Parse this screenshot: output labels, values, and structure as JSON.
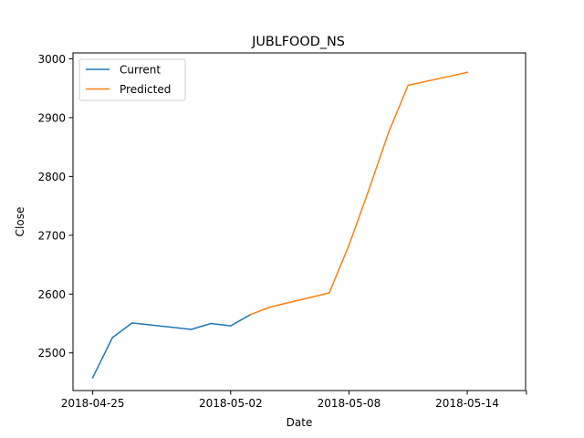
{
  "chart_data": {
    "type": "line",
    "title": "JUBLFOOD_NS",
    "xlabel": "Date",
    "ylabel": "Close",
    "x_axis_type": "date",
    "xlim": [
      "2018-04-24",
      "2018-05-16"
    ],
    "ylim": [
      2436,
      3010
    ],
    "x_ticks": [
      "2018-04-25",
      "2018-05-02",
      "2018-05-08",
      "2018-05-14",
      "2018-05-17"
    ],
    "x_tick_labels": [
      "2018-04-25",
      "2018-05-02",
      "2018-05-08",
      "2018-05-14",
      ""
    ],
    "y_ticks": [
      2500,
      2600,
      2700,
      2800,
      2900,
      3000
    ],
    "y_tick_labels": [
      "2500",
      "2600",
      "2700",
      "2800",
      "2900",
      "3000"
    ],
    "grid": false,
    "legend_position": "top-left",
    "series": [
      {
        "name": "Current",
        "color": "#1f77b4",
        "points": [
          {
            "x": "2018-04-25",
            "y": 2458
          },
          {
            "x": "2018-04-26",
            "y": 2526
          },
          {
            "x": "2018-04-27",
            "y": 2551
          },
          {
            "x": "2018-04-30",
            "y": 2540
          },
          {
            "x": "2018-05-01",
            "y": 2550
          },
          {
            "x": "2018-05-02",
            "y": 2546
          },
          {
            "x": "2018-05-03",
            "y": 2565
          }
        ]
      },
      {
        "name": "Predicted",
        "color": "#ff7f0e",
        "points": [
          {
            "x": "2018-05-03",
            "y": 2565
          },
          {
            "x": "2018-05-04",
            "y": 2578
          },
          {
            "x": "2018-05-07",
            "y": 2602
          },
          {
            "x": "2018-05-08",
            "y": 2683
          },
          {
            "x": "2018-05-09",
            "y": 2776
          },
          {
            "x": "2018-05-10",
            "y": 2874
          },
          {
            "x": "2018-05-11",
            "y": 2955
          },
          {
            "x": "2018-05-14",
            "y": 2977
          }
        ]
      }
    ]
  }
}
